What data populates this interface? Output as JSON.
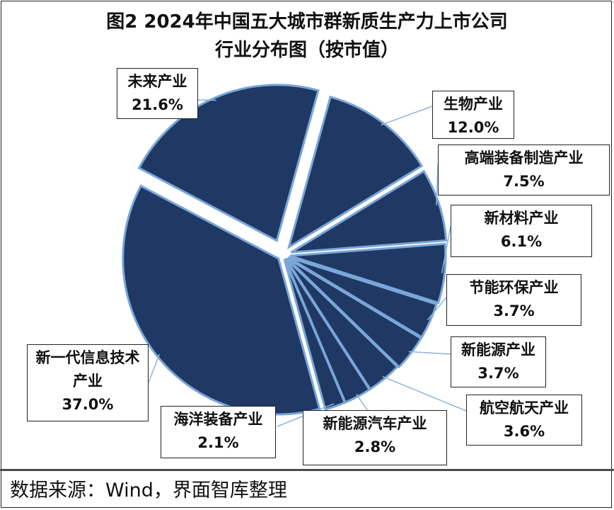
{
  "title_line1": "图2 2024年中国五大城市群新质生产力上市公司",
  "title_line2": "行业分布图（按市值）",
  "source": "数据来源：Wind，界面智库整理",
  "colors": {
    "slice_fill": "#1f3864",
    "slice_edge": "#7aa6d8",
    "leader": "#8fb4dc"
  },
  "chart_data": {
    "type": "pie",
    "title": "图2 2024年中国五大城市群新质生产力上市公司 行业分布图（按市值）",
    "unit": "%",
    "slices": [
      {
        "label": "未来产业",
        "value": 21.6,
        "display": "21.6%"
      },
      {
        "label": "生物产业",
        "value": 12.0,
        "display": "12.0%"
      },
      {
        "label": "高端装备制造产业",
        "value": 7.5,
        "display": "7.5%"
      },
      {
        "label": "新材料产业",
        "value": 6.1,
        "display": "6.1%"
      },
      {
        "label": "节能环保产业",
        "value": 3.7,
        "display": "3.7%"
      },
      {
        "label": "新能源产业",
        "value": 3.7,
        "display": "3.7%"
      },
      {
        "label": "航空航天产业",
        "value": 3.6,
        "display": "3.6%"
      },
      {
        "label": "新能源汽车产业",
        "value": 2.8,
        "display": "2.8%"
      },
      {
        "label": "海洋装备产业",
        "value": 2.1,
        "display": "2.1%"
      },
      {
        "label": "新一代信息技术产业",
        "value": 37.0,
        "display": "37.0%"
      }
    ]
  }
}
